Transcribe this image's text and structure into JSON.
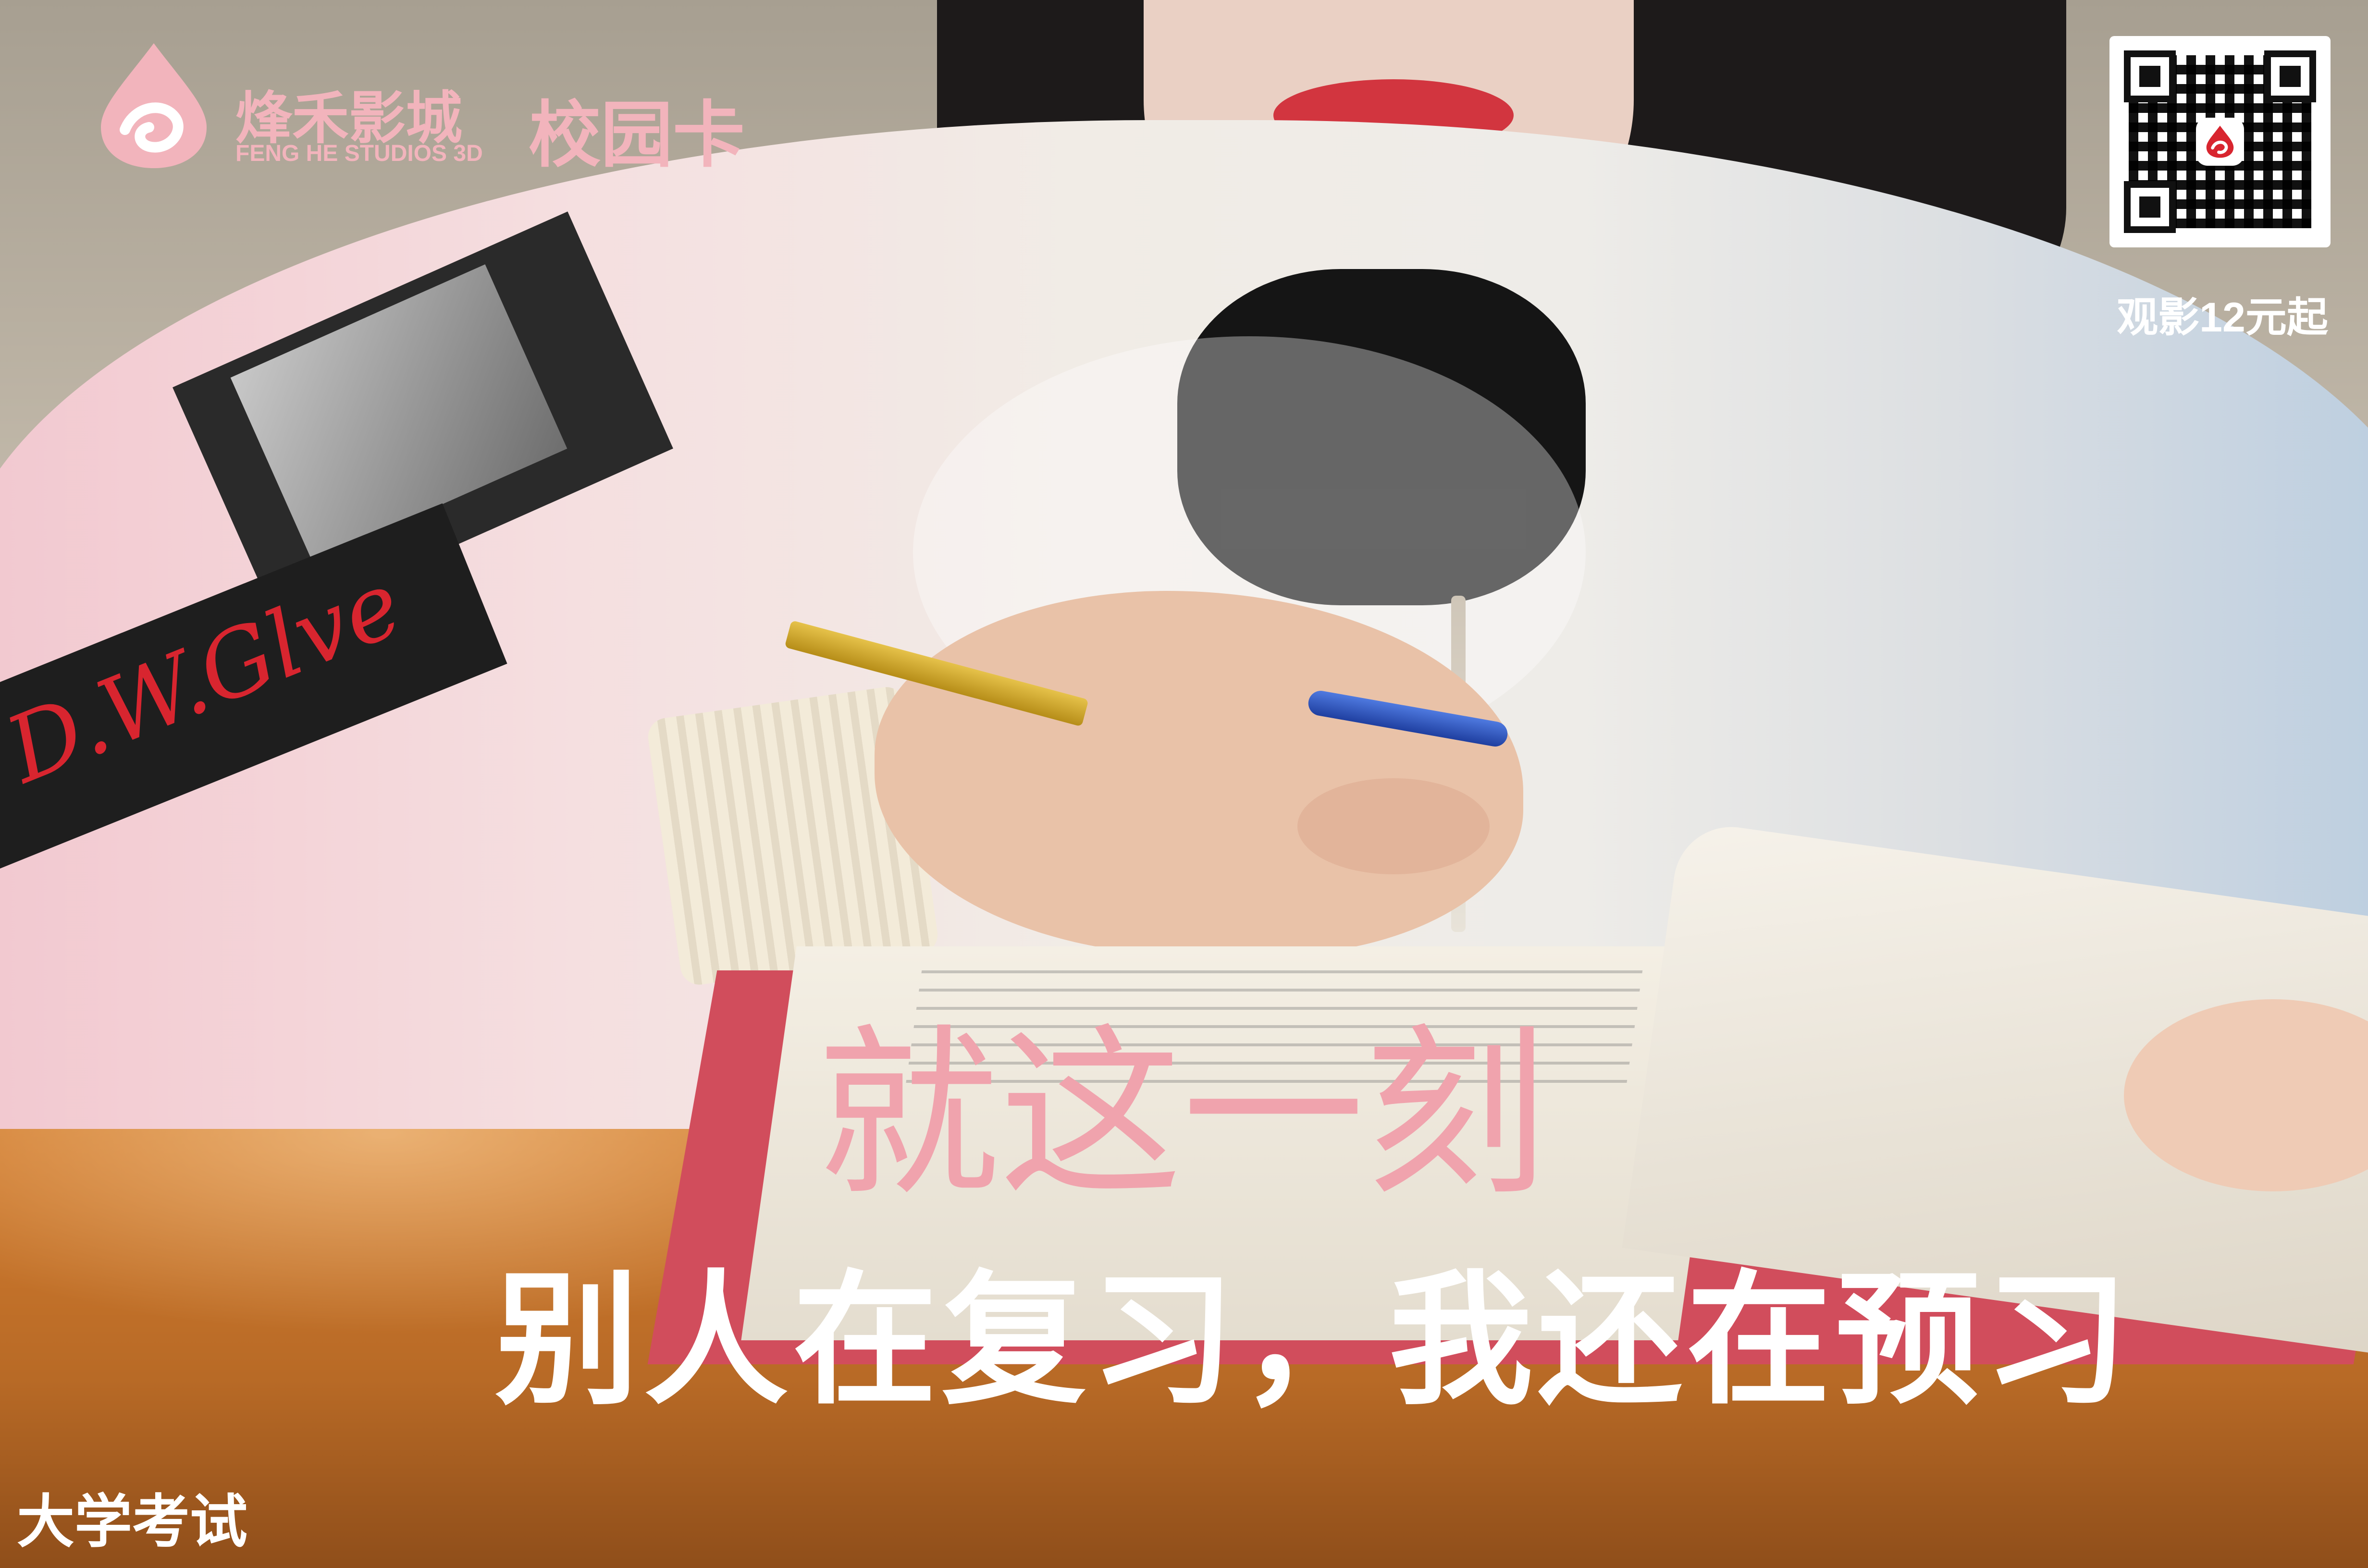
{
  "brand": {
    "name_cn": "烽禾影城",
    "name_en": "FENG HE STUDIOS 3D",
    "product": "校园卡",
    "color": "#f2b4bc"
  },
  "qr": {
    "caption": "观影12元起"
  },
  "photo": {
    "sleeve_text": "D.W.Glve"
  },
  "headline": "就这一刻",
  "subline": "别人在复习，我还在预习",
  "corner_label": "大学考试",
  "colors": {
    "headline": "#f0a3ad",
    "subline": "#ffffff",
    "sleeve_text": "#d8252f"
  }
}
